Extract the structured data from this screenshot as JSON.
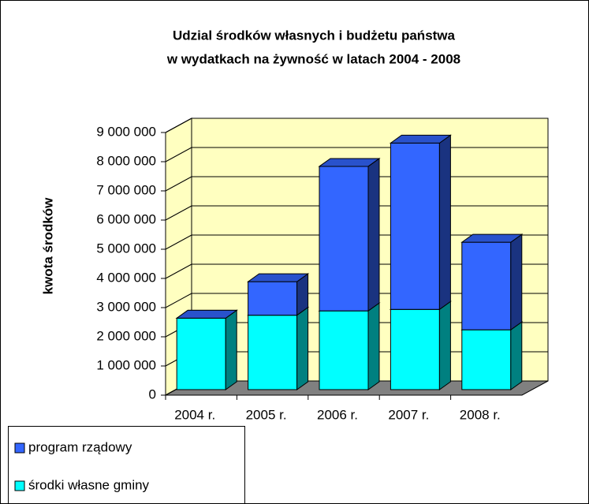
{
  "chart_data": {
    "type": "bar3d_stacked",
    "title": [
      "Udzial środków własnych i budżetu państwa",
      "w wydatkach na żywność w latach 2004 - 2008"
    ],
    "y_label": "kwota środków",
    "categories": [
      "2004 r.",
      "2005 r.",
      "2006 r.",
      "2007 r.",
      "2008 r."
    ],
    "series": [
      {
        "name": "środki własne gminy",
        "color": "#00ffff",
        "values": [
          2450000,
          2550000,
          2700000,
          2750000,
          2050000
        ]
      },
      {
        "name": "program rządowy",
        "color": "#3366ff",
        "values": [
          0,
          1150000,
          4950000,
          5700000,
          3000000
        ]
      }
    ],
    "ylim": [
      0,
      9000000
    ],
    "yticks": [
      0,
      {
        "value": 1000000,
        "label": "1 000 000"
      },
      {
        "value": 2000000,
        "label": "2 000 000"
      },
      {
        "value": 3000000,
        "label": "3 000 000"
      },
      {
        "value": 4000000,
        "label": "4 000 000"
      },
      {
        "value": 5000000,
        "label": "5 000 000"
      },
      {
        "value": 6000000,
        "label": "6 000 000"
      },
      {
        "value": 7000000,
        "label": "7 000 000"
      },
      {
        "value": 8000000,
        "label": "8 000 000"
      },
      {
        "value": 9000000,
        "label": "9 000 000"
      }
    ],
    "grid": true,
    "legend": "bottom-left"
  }
}
